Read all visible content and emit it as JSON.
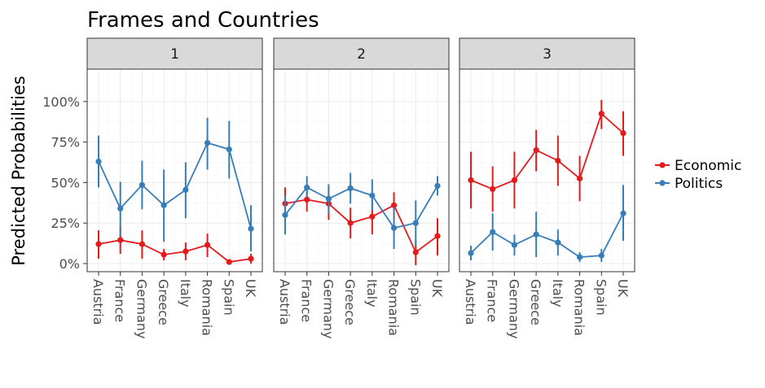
{
  "chart_data": {
    "type": "line",
    "title": "Frames and Countries",
    "ylabel": "Predicted Probabilities",
    "xlabel": "",
    "ylim": [
      -0.05,
      1.2
    ],
    "yticks": [
      {
        "value": 0,
        "label": "0%"
      },
      {
        "value": 0.25,
        "label": "25%"
      },
      {
        "value": 0.5,
        "label": "50%"
      },
      {
        "value": 0.75,
        "label": "75%"
      },
      {
        "value": 1.0,
        "label": "100%"
      }
    ],
    "categories": [
      "Austria",
      "France",
      "Germany",
      "Greece",
      "Italy",
      "Romania",
      "Spain",
      "UK"
    ],
    "legend_position": "right",
    "grid": true,
    "colors": {
      "Economic": "#e41a1c",
      "Politics": "#377eb8"
    },
    "panels": [
      {
        "label": "1",
        "series": [
          {
            "name": "Economic",
            "values": [
              0.12,
              0.145,
              0.12,
              0.055,
              0.075,
              0.115,
              0.01,
              0.03
            ],
            "lower": [
              0.03,
              0.06,
              0.03,
              0.02,
              0.02,
              0.04,
              0.0,
              0.0
            ],
            "upper": [
              0.205,
              0.23,
              0.205,
              0.09,
              0.13,
              0.185,
              0.02,
              0.06
            ]
          },
          {
            "name": "Politics",
            "values": [
              0.63,
              0.34,
              0.485,
              0.36,
              0.455,
              0.745,
              0.705,
              0.215
            ],
            "lower": [
              0.47,
              0.17,
              0.335,
              0.135,
              0.28,
              0.58,
              0.525,
              0.075
            ],
            "upper": [
              0.79,
              0.505,
              0.635,
              0.58,
              0.625,
              0.9,
              0.88,
              0.36
            ]
          }
        ]
      },
      {
        "label": "2",
        "series": [
          {
            "name": "Economic",
            "values": [
              0.37,
              0.395,
              0.37,
              0.25,
              0.29,
              0.36,
              0.07,
              0.17
            ],
            "lower": [
              0.27,
              0.32,
              0.27,
              0.155,
              0.18,
              0.27,
              -0.01,
              0.05
            ],
            "upper": [
              0.47,
              0.47,
              0.47,
              0.345,
              0.395,
              0.44,
              0.145,
              0.28
            ]
          },
          {
            "name": "Politics",
            "values": [
              0.3,
              0.47,
              0.4,
              0.465,
              0.42,
              0.22,
              0.25,
              0.48
            ],
            "lower": [
              0.18,
              0.41,
              0.31,
              0.37,
              0.33,
              0.09,
              0.11,
              0.42
            ],
            "upper": [
              0.42,
              0.54,
              0.49,
              0.56,
              0.52,
              0.35,
              0.39,
              0.54
            ]
          }
        ]
      },
      {
        "label": "3",
        "series": [
          {
            "name": "Economic",
            "values": [
              0.515,
              0.46,
              0.515,
              0.7,
              0.635,
              0.525,
              0.925,
              0.805
            ],
            "lower": [
              0.34,
              0.32,
              0.34,
              0.57,
              0.48,
              0.385,
              0.83,
              0.665
            ],
            "upper": [
              0.69,
              0.6,
              0.69,
              0.825,
              0.79,
              0.665,
              1.01,
              0.94
            ]
          },
          {
            "name": "Politics",
            "values": [
              0.065,
              0.195,
              0.115,
              0.18,
              0.13,
              0.04,
              0.05,
              0.31
            ],
            "lower": [
              0.02,
              0.08,
              0.05,
              0.04,
              0.05,
              0.01,
              0.01,
              0.14
            ],
            "upper": [
              0.11,
              0.31,
              0.18,
              0.32,
              0.21,
              0.07,
              0.09,
              0.485
            ]
          }
        ]
      }
    ]
  }
}
